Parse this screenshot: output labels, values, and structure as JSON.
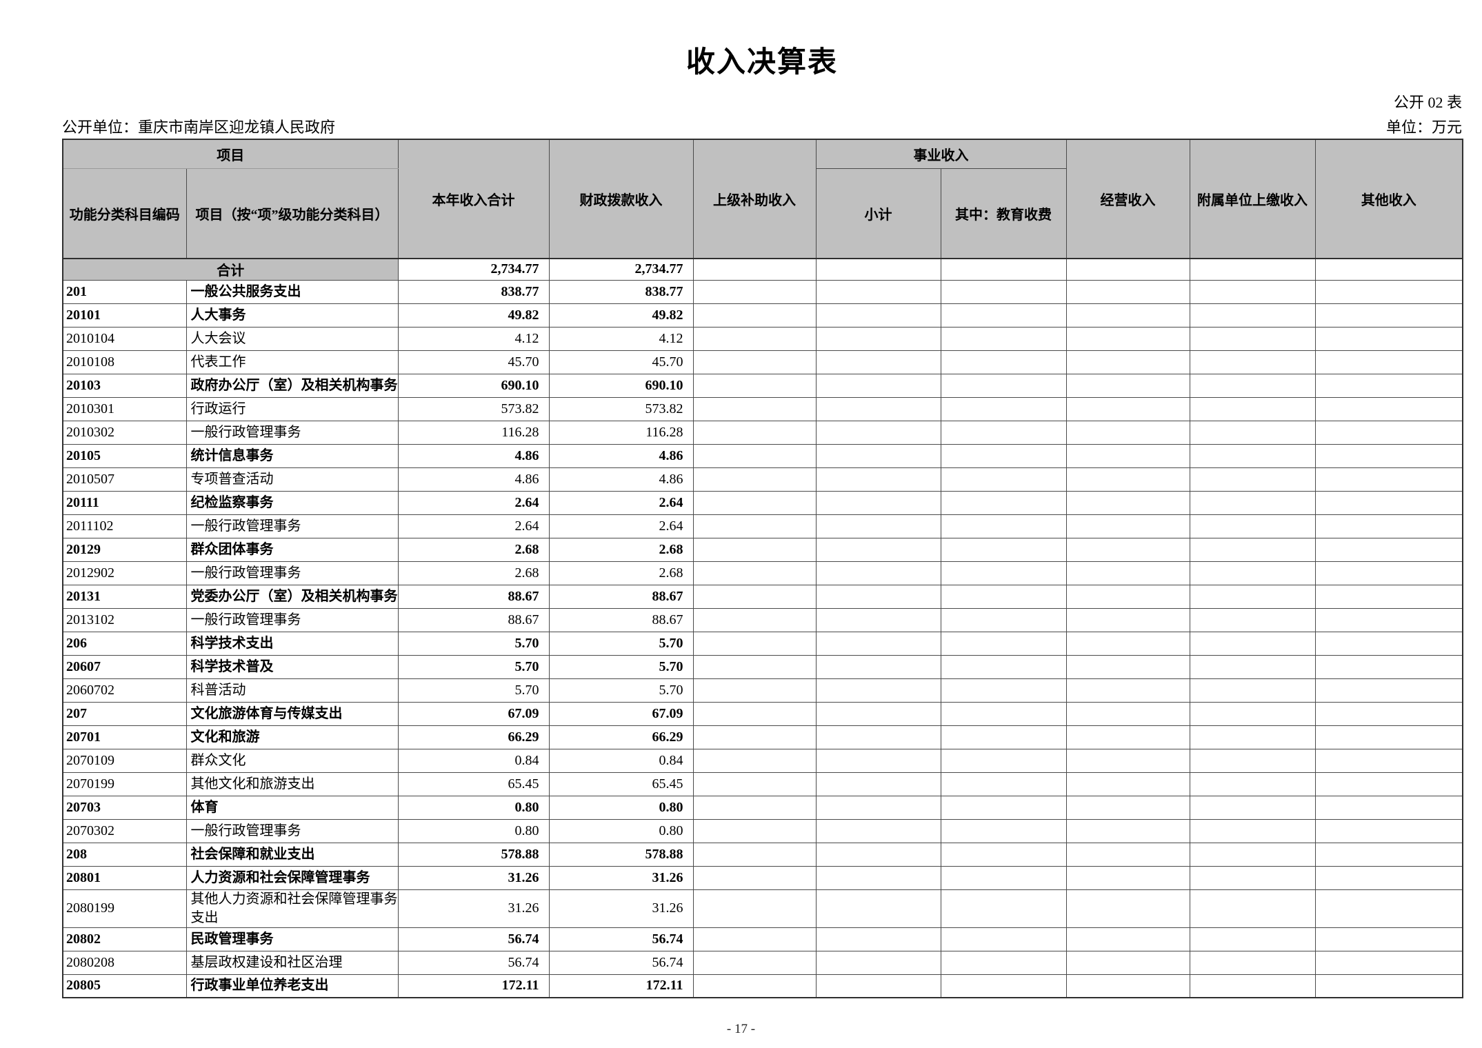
{
  "page": {
    "title": "收入决算表",
    "table_code": "公开 02 表",
    "publisher": "公开单位：重庆市南岸区迎龙镇人民政府",
    "unit_label": "单位：万元",
    "page_number": "- 17 -"
  },
  "colors": {
    "header_bg": "#c0c0c0",
    "header_bg_light": "#cdcdcd",
    "total_cell_bg": "#bfbfbf",
    "grid_line": "#4a4a4a"
  },
  "table": {
    "header": {
      "project_group": "项目",
      "code": "功能分类科目编码",
      "name": "项目（按“项”级功能分类科目）",
      "total_income": "本年收入合计",
      "fiscal": "财政拨款收入",
      "superior": "上级补助收入",
      "business_group": "事业收入",
      "subtotal": "小计",
      "education": "其中：教育收费",
      "operating": "经营收入",
      "affiliated": "附属单位上缴收入",
      "other": "其他收入"
    },
    "total_row": {
      "label": "合计",
      "total": "2,734.77",
      "fiscal": "2,734.77"
    },
    "rows": [
      {
        "code": "201",
        "name": "一般公共服务支出",
        "total": "838.77",
        "fiscal": "838.77",
        "bold": true
      },
      {
        "code": "20101",
        "name": "人大事务",
        "total": "49.82",
        "fiscal": "49.82",
        "bold": true
      },
      {
        "code": "2010104",
        "name": "人大会议",
        "total": "4.12",
        "fiscal": "4.12",
        "bold": false
      },
      {
        "code": "2010108",
        "name": "代表工作",
        "total": "45.70",
        "fiscal": "45.70",
        "bold": false
      },
      {
        "code": "20103",
        "name": "政府办公厅（室）及相关机构事务",
        "total": "690.10",
        "fiscal": "690.10",
        "bold": true
      },
      {
        "code": "2010301",
        "name": "行政运行",
        "total": "573.82",
        "fiscal": "573.82",
        "bold": false
      },
      {
        "code": "2010302",
        "name": "一般行政管理事务",
        "total": "116.28",
        "fiscal": "116.28",
        "bold": false
      },
      {
        "code": "20105",
        "name": "统计信息事务",
        "total": "4.86",
        "fiscal": "4.86",
        "bold": true
      },
      {
        "code": "2010507",
        "name": "专项普查活动",
        "total": "4.86",
        "fiscal": "4.86",
        "bold": false
      },
      {
        "code": "20111",
        "name": "纪检监察事务",
        "total": "2.64",
        "fiscal": "2.64",
        "bold": true
      },
      {
        "code": "2011102",
        "name": "一般行政管理事务",
        "total": "2.64",
        "fiscal": "2.64",
        "bold": false
      },
      {
        "code": "20129",
        "name": "群众团体事务",
        "total": "2.68",
        "fiscal": "2.68",
        "bold": true
      },
      {
        "code": "2012902",
        "name": "一般行政管理事务",
        "total": "2.68",
        "fiscal": "2.68",
        "bold": false
      },
      {
        "code": "20131",
        "name": "党委办公厅（室）及相关机构事务",
        "total": "88.67",
        "fiscal": "88.67",
        "bold": true
      },
      {
        "code": "2013102",
        "name": "一般行政管理事务",
        "total": "88.67",
        "fiscal": "88.67",
        "bold": false
      },
      {
        "code": "206",
        "name": "科学技术支出",
        "total": "5.70",
        "fiscal": "5.70",
        "bold": true
      },
      {
        "code": "20607",
        "name": "科学技术普及",
        "total": "5.70",
        "fiscal": "5.70",
        "bold": true
      },
      {
        "code": "2060702",
        "name": "科普活动",
        "total": "5.70",
        "fiscal": "5.70",
        "bold": false
      },
      {
        "code": "207",
        "name": "文化旅游体育与传媒支出",
        "total": "67.09",
        "fiscal": "67.09",
        "bold": true
      },
      {
        "code": "20701",
        "name": "文化和旅游",
        "total": "66.29",
        "fiscal": "66.29",
        "bold": true
      },
      {
        "code": "2070109",
        "name": "群众文化",
        "total": "0.84",
        "fiscal": "0.84",
        "bold": false
      },
      {
        "code": "2070199",
        "name": "其他文化和旅游支出",
        "total": "65.45",
        "fiscal": "65.45",
        "bold": false
      },
      {
        "code": "20703",
        "name": "体育",
        "total": "0.80",
        "fiscal": "0.80",
        "bold": true
      },
      {
        "code": "2070302",
        "name": "一般行政管理事务",
        "total": "0.80",
        "fiscal": "0.80",
        "bold": false
      },
      {
        "code": "208",
        "name": "社会保障和就业支出",
        "total": "578.88",
        "fiscal": "578.88",
        "bold": true
      },
      {
        "code": "20801",
        "name": "人力资源和社会保障管理事务",
        "total": "31.26",
        "fiscal": "31.26",
        "bold": true
      },
      {
        "code": "2080199",
        "name": "其他人力资源和社会保障管理事务支出",
        "total": "31.26",
        "fiscal": "31.26",
        "bold": false
      },
      {
        "code": "20802",
        "name": "民政管理事务",
        "total": "56.74",
        "fiscal": "56.74",
        "bold": true
      },
      {
        "code": "2080208",
        "name": "基层政权建设和社区治理",
        "total": "56.74",
        "fiscal": "56.74",
        "bold": false
      },
      {
        "code": "20805",
        "name": "行政事业单位养老支出",
        "total": "172.11",
        "fiscal": "172.11",
        "bold": true
      }
    ]
  }
}
